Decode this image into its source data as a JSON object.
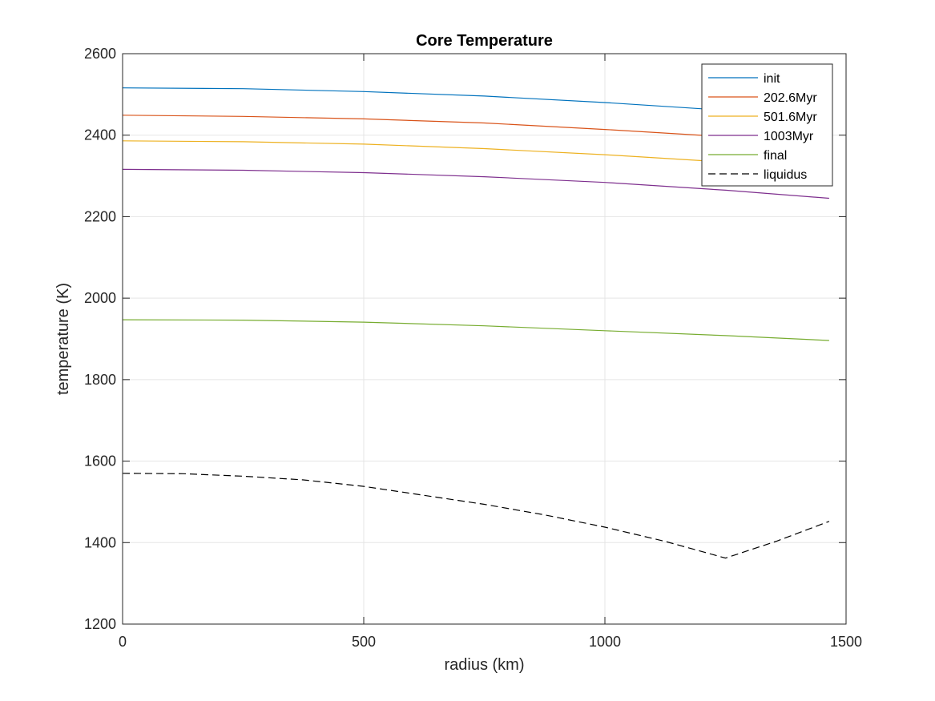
{
  "chart_data": {
    "type": "line",
    "title": "Core Temperature",
    "xlabel": "radius (km)",
    "ylabel": "temperature (K)",
    "xlim": [
      0,
      1500
    ],
    "ylim": [
      1200,
      2600
    ],
    "xticks": [
      0,
      500,
      1000,
      1500
    ],
    "yticks": [
      1200,
      1400,
      1600,
      1800,
      2000,
      2200,
      2400,
      2600
    ],
    "xtick_labels": [
      "0",
      "500",
      "1000",
      "1500"
    ],
    "ytick_labels": [
      "1200",
      "1400",
      "1600",
      "1800",
      "2000",
      "2200",
      "2400",
      "2600"
    ],
    "grid": true,
    "legend_position": "top-right",
    "series": [
      {
        "name": "init",
        "color": "#0072BD",
        "dash": "solid",
        "x": [
          0,
          250,
          500,
          750,
          1000,
          1250,
          1465
        ],
        "y": [
          2516,
          2514,
          2507,
          2496,
          2480,
          2461,
          2443
        ]
      },
      {
        "name": "202.6Myr",
        "color": "#D95319",
        "dash": "solid",
        "x": [
          0,
          250,
          500,
          750,
          1000,
          1250,
          1465
        ],
        "y": [
          2449,
          2446,
          2440,
          2430,
          2414,
          2396,
          2380
        ]
      },
      {
        "name": "501.6Myr",
        "color": "#EDB120",
        "dash": "solid",
        "x": [
          0,
          250,
          500,
          750,
          1000,
          1250,
          1465
        ],
        "y": [
          2386,
          2384,
          2378,
          2367,
          2352,
          2334,
          2318
        ]
      },
      {
        "name": "1003Myr",
        "color": "#7E2F8E",
        "dash": "solid",
        "x": [
          0,
          250,
          500,
          750,
          1000,
          1250,
          1465
        ],
        "y": [
          2316,
          2314,
          2308,
          2298,
          2284,
          2265,
          2245
        ]
      },
      {
        "name": "final",
        "color": "#77AC30",
        "dash": "solid",
        "x": [
          0,
          250,
          500,
          750,
          1000,
          1250,
          1465
        ],
        "y": [
          1947,
          1946,
          1941,
          1932,
          1920,
          1908,
          1896
        ]
      },
      {
        "name": "liquidus",
        "color": "#000000",
        "dash": "dashed",
        "x": [
          0,
          125,
          250,
          375,
          500,
          625,
          750,
          875,
          1000,
          1125,
          1250,
          1357,
          1465
        ],
        "y": [
          1570,
          1569,
          1563,
          1554,
          1538,
          1516,
          1494,
          1468,
          1438,
          1403,
          1362,
          1404,
          1452
        ]
      }
    ]
  }
}
